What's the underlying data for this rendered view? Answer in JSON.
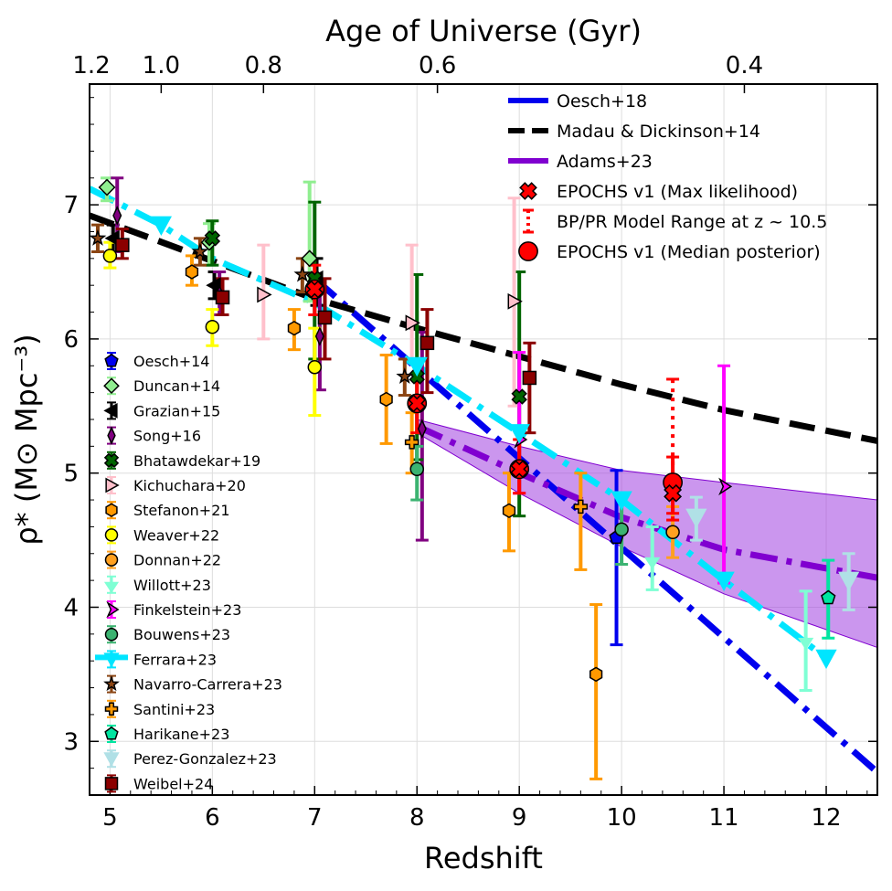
{
  "chart_data": {
    "type": "scatter",
    "xlabel": "Redshift",
    "ylabel": "ρ* (M⊙ Mpc⁻³)",
    "top_axis_label": "Age of Universe (Gyr)",
    "xlim": [
      4.8,
      12.5
    ],
    "ylim": [
      2.6,
      7.9
    ],
    "grid": true,
    "x_ticks": [
      5,
      6,
      7,
      8,
      9,
      10,
      11,
      12
    ],
    "x_tick_labels": [
      "5",
      "6",
      "7",
      "8",
      "9",
      "10",
      "11",
      "12"
    ],
    "y_ticks": [
      3,
      4,
      5,
      6,
      7
    ],
    "y_tick_labels": [
      "3",
      "4",
      "5",
      "6",
      "7"
    ],
    "top_ticks": [
      {
        "z": 4.8,
        "label": "1.2"
      },
      {
        "z": 5.5,
        "label": "1.0"
      },
      {
        "z": 6.5,
        "label": "0.8"
      },
      {
        "z": 8.2,
        "label": "0.6"
      },
      {
        "z": 11.2,
        "label": "0.4"
      }
    ],
    "lines": [
      {
        "name": "Oesch+18",
        "color": "#0000ee",
        "style": "dashdot",
        "points": [
          [
            7.0,
            6.45
          ],
          [
            12.5,
            2.77
          ]
        ]
      },
      {
        "name": "Madau & Dickinson+14",
        "color": "#000000",
        "style": "dashed",
        "points": [
          [
            4.8,
            6.92
          ],
          [
            7,
            6.3
          ],
          [
            8,
            6.08
          ],
          [
            9,
            5.87
          ],
          [
            10,
            5.66
          ],
          [
            11,
            5.47
          ],
          [
            12.5,
            5.24
          ]
        ]
      },
      {
        "name": "Adams+23",
        "color": "#8000d0",
        "style": "dashdot",
        "points": [
          [
            8.0,
            5.35
          ],
          [
            9,
            5.0
          ],
          [
            10,
            4.67
          ],
          [
            11,
            4.43
          ],
          [
            12.5,
            4.22
          ]
        ],
        "band_upper": [
          [
            8.0,
            5.4
          ],
          [
            9,
            5.2
          ],
          [
            10,
            5.02
          ],
          [
            11,
            4.93
          ],
          [
            12.5,
            4.8
          ]
        ],
        "band_lower": [
          [
            8.0,
            5.3
          ],
          [
            9,
            4.85
          ],
          [
            10,
            4.45
          ],
          [
            11,
            4.1
          ],
          [
            12.5,
            3.7
          ]
        ]
      },
      {
        "name": "Ferrara+23",
        "color": "#00e5ff",
        "style": "dashdot",
        "points": [
          [
            4.8,
            7.12
          ],
          [
            5.5,
            6.85
          ],
          [
            6,
            6.6
          ],
          [
            7,
            6.27
          ],
          [
            8,
            5.8
          ],
          [
            9,
            5.3
          ],
          [
            10,
            4.8
          ],
          [
            11,
            4.2
          ],
          [
            12,
            3.62
          ]
        ]
      }
    ],
    "series": [
      {
        "name": "Oesch+14",
        "marker": "pentagon",
        "color": "#0000ee",
        "points": [
          {
            "x": 9.95,
            "y": 4.52,
            "lo": 3.72,
            "hi": 5.02
          }
        ]
      },
      {
        "name": "Duncan+14",
        "marker": "diamond",
        "color": "#90ee90",
        "points": [
          {
            "x": 4.97,
            "y": 7.13,
            "lo": 7.03,
            "hi": 7.2
          },
          {
            "x": 5.97,
            "y": 6.72,
            "lo": 6.55,
            "hi": 6.86
          },
          {
            "x": 6.95,
            "y": 6.6,
            "lo": 6.28,
            "hi": 7.17
          }
        ]
      },
      {
        "name": "Grazian+15",
        "marker": "lefttri",
        "color": "#000000",
        "points": [
          {
            "x": 5.03,
            "y": 6.75,
            "lo": 6.65,
            "hi": 6.85
          },
          {
            "x": 6.02,
            "y": 6.4,
            "lo": 6.3,
            "hi": 6.5
          },
          {
            "x": 7.02,
            "y": 6.45,
            "lo": 6.25,
            "hi": 6.6
          }
        ]
      },
      {
        "name": "Song+16",
        "marker": "thindiamond",
        "color": "#800080",
        "points": [
          {
            "x": 5.07,
            "y": 6.92,
            "lo": 6.65,
            "hi": 7.2
          },
          {
            "x": 6.07,
            "y": 6.33,
            "lo": 6.18,
            "hi": 6.5
          },
          {
            "x": 7.05,
            "y": 6.02,
            "lo": 5.62,
            "hi": 6.43
          },
          {
            "x": 8.05,
            "y": 5.33,
            "lo": 4.5,
            "hi": 6.05
          }
        ]
      },
      {
        "name": "Bhatawdekar+19",
        "marker": "x",
        "color": "#006400",
        "points": [
          {
            "x": 6.0,
            "y": 6.75,
            "lo": 6.55,
            "hi": 6.88
          },
          {
            "x": 7.0,
            "y": 6.45,
            "lo": 5.85,
            "hi": 7.02
          },
          {
            "x": 8.0,
            "y": 5.72,
            "lo": 5.1,
            "hi": 6.48
          },
          {
            "x": 9.0,
            "y": 5.57,
            "lo": 4.68,
            "hi": 6.5
          }
        ]
      },
      {
        "name": "Kichuchara+20",
        "marker": "righttri",
        "color": "#ffc0cb",
        "points": [
          {
            "x": 6.5,
            "y": 6.33,
            "lo": 6.0,
            "hi": 6.7
          },
          {
            "x": 7.95,
            "y": 6.12,
            "lo": 5.85,
            "hi": 6.7
          },
          {
            "x": 8.95,
            "y": 6.28,
            "lo": 5.5,
            "hi": 7.05
          }
        ]
      },
      {
        "name": "Stefanon+21",
        "marker": "hexagon",
        "color": "#ff9900",
        "points": [
          {
            "x": 5.8,
            "y": 6.5,
            "lo": 6.4,
            "hi": 6.62
          },
          {
            "x": 6.8,
            "y": 6.08,
            "lo": 5.92,
            "hi": 6.22
          },
          {
            "x": 7.7,
            "y": 5.55,
            "lo": 5.22,
            "hi": 5.88
          },
          {
            "x": 8.9,
            "y": 4.72,
            "lo": 4.42,
            "hi": 5.0
          },
          {
            "x": 9.75,
            "y": 3.5,
            "lo": 2.72,
            "hi": 4.02
          }
        ]
      },
      {
        "name": "Weaver+22",
        "marker": "circle",
        "color": "#ffff00",
        "points": [
          {
            "x": 5.0,
            "y": 6.62,
            "lo": 6.53,
            "hi": 6.72
          },
          {
            "x": 6.0,
            "y": 6.09,
            "lo": 5.95,
            "hi": 6.22
          },
          {
            "x": 7.0,
            "y": 5.79,
            "lo": 5.43,
            "hi": 6.08
          }
        ]
      },
      {
        "name": "Donnan+22",
        "marker": "circle",
        "color": "#ffa020",
        "points": [
          {
            "x": 10.5,
            "y": 4.56,
            "lo": 4.37,
            "hi": 4.75
          }
        ]
      },
      {
        "name": "Willott+23",
        "marker": "fourpoint",
        "color": "#7fffd4",
        "points": [
          {
            "x": 10.3,
            "y": 4.35,
            "lo": 4.13,
            "hi": 4.6
          },
          {
            "x": 11.8,
            "y": 3.75,
            "lo": 3.38,
            "hi": 4.12
          }
        ]
      },
      {
        "name": "Finkelstein+23",
        "marker": "rightarrow",
        "color": "#ff00ff",
        "points": [
          {
            "x": 9.0,
            "y": 5.25,
            "lo": 4.85,
            "hi": 5.9
          },
          {
            "x": 11.0,
            "y": 4.9,
            "lo": 4.18,
            "hi": 5.8
          }
        ]
      },
      {
        "name": "Bouwens+23",
        "marker": "circle",
        "color": "#3cb371",
        "points": [
          {
            "x": 8.0,
            "y": 5.03,
            "lo": 4.8,
            "hi": 5.2
          },
          {
            "x": 10.0,
            "y": 4.58,
            "lo": 4.32,
            "hi": 4.85
          }
        ]
      },
      {
        "name": "Ferrara+23",
        "marker": "downtri",
        "color": "#00e5ff",
        "points": [
          {
            "x": 5.5,
            "y": 6.85
          },
          {
            "x": 8.0,
            "y": 5.8
          },
          {
            "x": 9.0,
            "y": 5.3
          },
          {
            "x": 10.0,
            "y": 4.8
          },
          {
            "x": 11.0,
            "y": 4.2
          },
          {
            "x": 12.0,
            "y": 3.62
          }
        ]
      },
      {
        "name": "Navarro-Carrera+23",
        "marker": "star",
        "color": "#8b4513",
        "points": [
          {
            "x": 4.88,
            "y": 6.75,
            "lo": 6.65,
            "hi": 6.85
          },
          {
            "x": 5.88,
            "y": 6.65,
            "lo": 6.55,
            "hi": 6.75
          },
          {
            "x": 6.88,
            "y": 6.48,
            "lo": 6.35,
            "hi": 6.6
          },
          {
            "x": 7.88,
            "y": 5.72,
            "lo": 5.58,
            "hi": 5.85
          }
        ]
      },
      {
        "name": "Santini+23",
        "marker": "plus",
        "color": "#ff9900",
        "points": [
          {
            "x": 7.95,
            "y": 5.23,
            "lo": 5.0,
            "hi": 5.45
          },
          {
            "x": 9.6,
            "y": 4.75,
            "lo": 4.28,
            "hi": 5.0
          }
        ]
      },
      {
        "name": "Harikane+23",
        "marker": "pentagon",
        "color": "#00e5a0",
        "points": [
          {
            "x": 12.02,
            "y": 4.07,
            "lo": 3.77,
            "hi": 4.35
          }
        ]
      },
      {
        "name": "Perez-Gonzalez+23",
        "marker": "downtri",
        "color": "#b0e0e6",
        "points": [
          {
            "x": 10.73,
            "y": 4.67,
            "lo": 4.5,
            "hi": 4.82
          },
          {
            "x": 12.22,
            "y": 4.2,
            "lo": 3.98,
            "hi": 4.4
          }
        ]
      },
      {
        "name": "Weibel+24",
        "marker": "square",
        "color": "#8b0000",
        "points": [
          {
            "x": 5.12,
            "y": 6.7,
            "lo": 6.6,
            "hi": 6.82
          },
          {
            "x": 6.1,
            "y": 6.31,
            "lo": 6.18,
            "hi": 6.45
          },
          {
            "x": 7.1,
            "y": 6.16,
            "lo": 5.85,
            "hi": 6.45
          },
          {
            "x": 8.1,
            "y": 5.97,
            "lo": 5.6,
            "hi": 6.22
          },
          {
            "x": 9.1,
            "y": 5.71,
            "lo": 5.3,
            "hi": 5.97
          }
        ]
      },
      {
        "name": "EPOCHS v1 (Median posterior)",
        "marker": "bigcircle",
        "color": "#ff0000",
        "points": [
          {
            "x": 7.0,
            "y": 6.37,
            "lo": 6.18,
            "hi": 6.55
          },
          {
            "x": 8.0,
            "y": 5.52,
            "lo": 5.3,
            "hi": 5.7
          },
          {
            "x": 9.0,
            "y": 5.03,
            "lo": 4.85,
            "hi": 5.25
          },
          {
            "x": 10.5,
            "y": 4.93,
            "lo": 4.7,
            "hi": 5.12
          }
        ]
      },
      {
        "name": "EPOCHS v1 (Max likelihood)",
        "marker": "x",
        "color": "#ff0000",
        "points": [
          {
            "x": 7.0,
            "y": 6.37
          },
          {
            "x": 8.0,
            "y": 5.52
          },
          {
            "x": 9.0,
            "y": 5.03
          },
          {
            "x": 10.5,
            "y": 4.85
          }
        ]
      },
      {
        "name": "BP/PR Model Range at z ~ 10.5",
        "marker": "dottedbar",
        "color": "#ff0000",
        "points": [
          {
            "x": 10.5,
            "lo": 4.65,
            "hi": 5.7
          }
        ]
      }
    ],
    "legend_upper": [
      {
        "label": "Oesch+18",
        "style": "blueline"
      },
      {
        "label": "Madau & Dickinson+14",
        "style": "blackdash"
      },
      {
        "label": "Adams+23",
        "style": "purpleline"
      },
      {
        "label": "EPOCHS v1 (Max likelihood)",
        "style": "redx"
      },
      {
        "label": "BP/PR Model Range at z ~ 10.5",
        "style": "reddots"
      },
      {
        "label": "EPOCHS v1 (Median posterior)",
        "style": "redcircle"
      }
    ],
    "legend_lower": [
      "Oesch+14",
      "Duncan+14",
      "Grazian+15",
      "Song+16",
      "Bhatawdekar+19",
      "Kichuchara+20",
      "Stefanon+21",
      "Weaver+22",
      "Donnan+22",
      "Willott+23",
      "Finkelstein+23",
      "Bouwens+23",
      "Ferrara+23",
      "Navarro-Carrera+23",
      "Santini+23",
      "Harikane+23",
      "Perez-Gonzalez+23",
      "Weibel+24"
    ]
  }
}
